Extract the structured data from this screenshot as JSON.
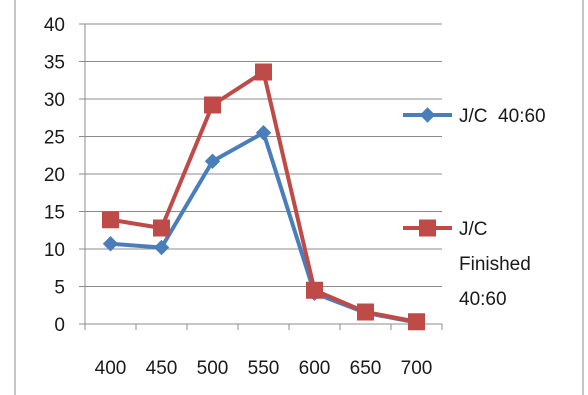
{
  "chart_data": {
    "type": "line",
    "title": "",
    "xlabel": "",
    "ylabel": "",
    "x": [
      400,
      450,
      500,
      550,
      600,
      650,
      700
    ],
    "x_tick_labels": [
      "400",
      "450",
      "500",
      "550",
      "600",
      "650",
      "700"
    ],
    "ylim": [
      0,
      40
    ],
    "y_ticks": [
      0,
      5,
      10,
      15,
      20,
      25,
      30,
      35,
      40
    ],
    "y_tick_labels": [
      "0",
      "5",
      "10",
      "15",
      "20",
      "25",
      "30",
      "35",
      "40"
    ],
    "grid": "horizontal",
    "legend_position": "right",
    "series": [
      {
        "name": "J/C  40:60",
        "color": "#4a7ebb",
        "marker": "diamond",
        "values": [
          10.7,
          10.2,
          21.7,
          25.5,
          4.1,
          1.5,
          0.2
        ]
      },
      {
        "name": "J/C Finished 40:60",
        "legend_lines": [
          "J/C",
          "Finished",
          "40:60"
        ],
        "color": "#be4b48",
        "marker": "square",
        "values": [
          13.9,
          12.8,
          29.2,
          33.6,
          4.5,
          1.6,
          0.3
        ]
      }
    ]
  }
}
